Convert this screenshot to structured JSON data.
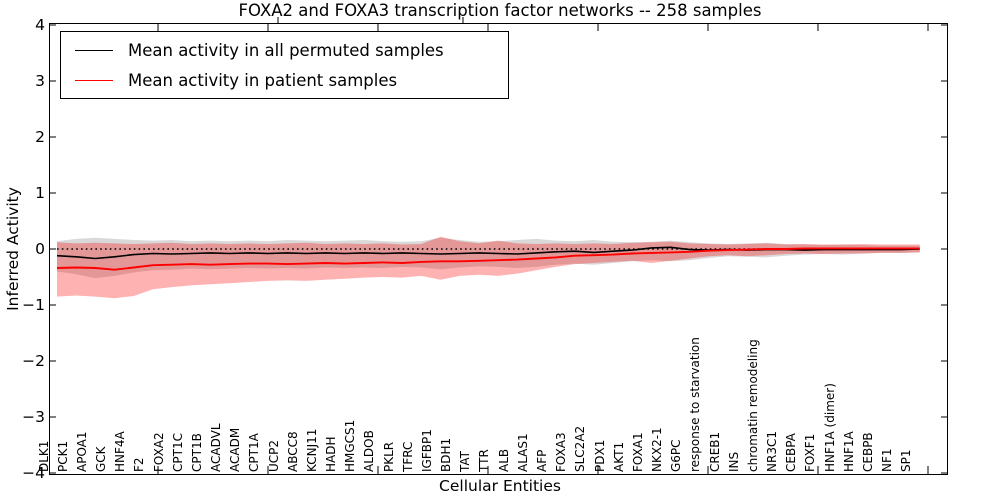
{
  "chart_data": {
    "type": "line",
    "title": "FOXA2 and FOXA3 transcription factor networks -- 258 samples",
    "xlabel": "Cellular Entities",
    "ylabel": "Inferred Activity",
    "ylim": [
      -4,
      4
    ],
    "yticks": [
      4,
      3,
      2,
      1,
      0,
      -1,
      -2,
      -3,
      -4
    ],
    "grid": false,
    "legend_position": "upper left",
    "zero_reference_line": {
      "y": 0,
      "style": "dotted",
      "color": "#000000"
    },
    "categories": [
      "DLK1",
      "PCK1",
      "APOA1",
      "GCK",
      "HNF4A",
      "F2",
      "FOXA2",
      "CPT1C",
      "CPT1B",
      "ACADVL",
      "ACADM",
      "CPT1A",
      "UCP2",
      "ABCC8",
      "KCNJ11",
      "HADH",
      "HMGCS1",
      "ALDOB",
      "PKLR",
      "TFRC",
      "IGFBP1",
      "BDH1",
      "TAT",
      "TTR",
      "ALB",
      "ALAS1",
      "AFP",
      "FOXA3",
      "SLC2A2",
      "PDX1",
      "AKT1",
      "FOXA1",
      "NKX2-1",
      "G6PC",
      "response to starvation",
      "CREB1",
      "INS",
      "chromatin remodeling",
      "NR3C1",
      "CEBPA",
      "FOXF1",
      "HNF1A (dimer)",
      "HNF1A",
      "CEBPB",
      "NF1",
      "SP1"
    ],
    "series": [
      {
        "name": "Mean activity in all permuted samples",
        "color": "#000000",
        "values": [
          -0.12,
          -0.14,
          -0.17,
          -0.14,
          -0.1,
          -0.08,
          -0.09,
          -0.08,
          -0.07,
          -0.08,
          -0.07,
          -0.08,
          -0.07,
          -0.08,
          -0.07,
          -0.08,
          -0.07,
          -0.08,
          -0.07,
          -0.08,
          -0.09,
          -0.08,
          -0.07,
          -0.08,
          -0.09,
          -0.07,
          -0.05,
          -0.04,
          -0.06,
          -0.04,
          -0.02,
          0.02,
          0.03,
          -0.01,
          -0.02,
          -0.01,
          -0.02,
          -0.01,
          -0.01,
          -0.02,
          -0.01,
          -0.01,
          -0.01,
          -0.01,
          -0.01,
          0.0
        ]
      },
      {
        "name": "Mean activity in patient samples",
        "color": "#ff0000",
        "values": [
          -0.34,
          -0.33,
          -0.34,
          -0.37,
          -0.33,
          -0.29,
          -0.28,
          -0.27,
          -0.28,
          -0.27,
          -0.26,
          -0.26,
          -0.27,
          -0.26,
          -0.25,
          -0.26,
          -0.25,
          -0.24,
          -0.25,
          -0.23,
          -0.22,
          -0.22,
          -0.21,
          -0.2,
          -0.19,
          -0.17,
          -0.15,
          -0.12,
          -0.11,
          -0.1,
          -0.08,
          -0.07,
          -0.06,
          -0.05,
          -0.03,
          -0.02,
          -0.01,
          0.0,
          0.0,
          0.01,
          0.01,
          0.01,
          0.01,
          0.01,
          0.01,
          0.01
        ]
      }
    ],
    "bands": [
      {
        "name": "permuted-samples-spread",
        "fill": "rgba(120,120,120,0.28)",
        "upper": [
          0.14,
          0.18,
          0.2,
          0.18,
          0.16,
          0.15,
          0.16,
          0.14,
          0.15,
          0.14,
          0.15,
          0.14,
          0.16,
          0.15,
          0.14,
          0.15,
          0.16,
          0.14,
          0.13,
          0.14,
          0.2,
          0.16,
          0.13,
          0.14,
          0.16,
          0.18,
          0.15,
          0.14,
          0.16,
          0.13,
          0.12,
          0.13,
          0.15,
          0.12,
          0.1,
          0.09,
          0.1,
          0.11,
          0.09,
          0.08,
          0.07,
          0.08,
          0.07,
          0.06,
          0.06,
          0.06
        ],
        "lower": [
          -0.4,
          -0.45,
          -0.52,
          -0.48,
          -0.42,
          -0.38,
          -0.37,
          -0.35,
          -0.36,
          -0.35,
          -0.34,
          -0.35,
          -0.34,
          -0.35,
          -0.33,
          -0.34,
          -0.33,
          -0.34,
          -0.32,
          -0.33,
          -0.36,
          -0.33,
          -0.31,
          -0.32,
          -0.34,
          -0.32,
          -0.28,
          -0.26,
          -0.28,
          -0.25,
          -0.22,
          -0.2,
          -0.22,
          -0.2,
          -0.16,
          -0.13,
          -0.14,
          -0.15,
          -0.12,
          -0.1,
          -0.09,
          -0.1,
          -0.08,
          -0.07,
          -0.07,
          -0.06
        ]
      },
      {
        "name": "patient-samples-spread",
        "fill": "rgba(255,0,0,0.30)",
        "upper": [
          0.12,
          0.1,
          0.11,
          0.1,
          0.09,
          0.1,
          0.11,
          0.09,
          0.1,
          0.09,
          0.1,
          0.09,
          0.1,
          0.11,
          0.09,
          0.1,
          0.09,
          0.1,
          0.08,
          0.09,
          0.22,
          0.14,
          0.1,
          0.15,
          0.1,
          0.09,
          0.1,
          0.09,
          0.1,
          0.09,
          0.11,
          0.12,
          0.13,
          0.1,
          0.09,
          0.08,
          0.09,
          0.1,
          0.08,
          0.09,
          0.08,
          0.08,
          0.09,
          0.08,
          0.08,
          0.08
        ],
        "lower": [
          -0.85,
          -0.83,
          -0.85,
          -0.88,
          -0.84,
          -0.72,
          -0.68,
          -0.65,
          -0.63,
          -0.61,
          -0.59,
          -0.57,
          -0.56,
          -0.57,
          -0.55,
          -0.53,
          -0.51,
          -0.5,
          -0.51,
          -0.48,
          -0.55,
          -0.48,
          -0.46,
          -0.48,
          -0.44,
          -0.38,
          -0.32,
          -0.27,
          -0.25,
          -0.23,
          -0.21,
          -0.25,
          -0.21,
          -0.17,
          -0.13,
          -0.11,
          -0.13,
          -0.11,
          -0.09,
          -0.08,
          -0.09,
          -0.08,
          -0.08,
          -0.07,
          -0.07,
          -0.06
        ]
      }
    ]
  }
}
